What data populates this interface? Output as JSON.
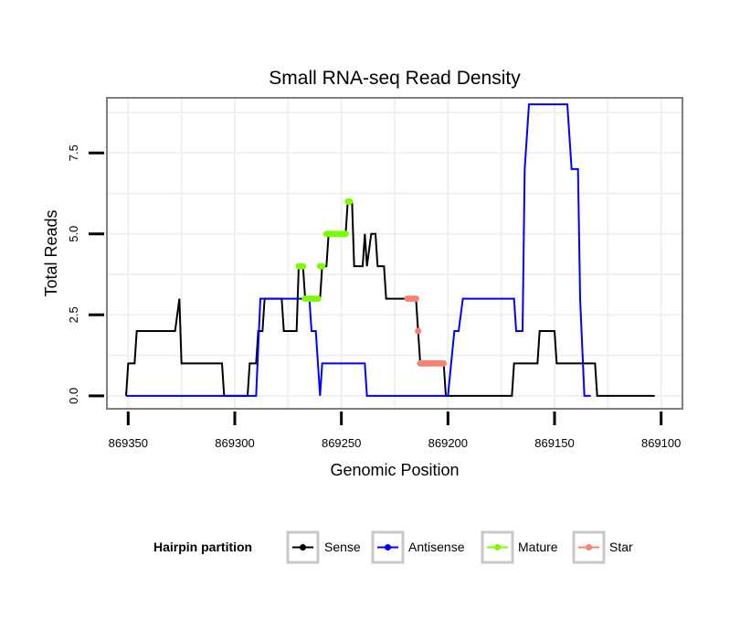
{
  "chart_data": {
    "type": "line",
    "title": "Small RNA-seq Read Density",
    "xlabel": "Genomic Position",
    "ylabel": "Total Reads",
    "xlim": [
      869360,
      869090
    ],
    "ylim": [
      -0.4,
      9.2
    ],
    "x_ticks": [
      869350,
      869300,
      869250,
      869200,
      869150,
      869100
    ],
    "x_tick_labels": [
      "869350",
      "869300",
      "869250",
      "869200",
      "869150",
      "869100"
    ],
    "y_ticks": [
      0,
      2.5,
      5,
      7.5
    ],
    "y_tick_labels": [
      "0.0",
      "2.5",
      "5.0",
      "7.5"
    ],
    "grid": true,
    "legend_position": "bottom",
    "legend_title": "Hairpin partition",
    "series": [
      {
        "name": "Sense",
        "color": "#000000",
        "style": "line",
        "points": [
          [
            869351,
            0
          ],
          [
            869350,
            1
          ],
          [
            869347,
            1
          ],
          [
            869346,
            2
          ],
          [
            869328,
            2
          ],
          [
            869326,
            3
          ],
          [
            869325,
            1
          ],
          [
            869306,
            1
          ],
          [
            869305,
            0
          ],
          [
            869294,
            0
          ],
          [
            869293,
            1
          ],
          [
            869290,
            1
          ],
          [
            869289,
            2
          ],
          [
            869287,
            2
          ],
          [
            869286,
            3
          ],
          [
            869278,
            3
          ],
          [
            869277,
            2
          ],
          [
            869271,
            2
          ],
          [
            869270,
            4
          ],
          [
            869268,
            4
          ],
          [
            869267,
            3
          ],
          [
            869260,
            3
          ],
          [
            869259,
            4
          ],
          [
            869257,
            4
          ],
          [
            869256,
            5
          ],
          [
            869248,
            5
          ],
          [
            869247,
            6
          ],
          [
            869245,
            6
          ],
          [
            869244,
            4
          ],
          [
            869240,
            4
          ],
          [
            869239,
            5
          ],
          [
            869238,
            4
          ],
          [
            869236,
            5
          ],
          [
            869234,
            5
          ],
          [
            869233,
            4
          ],
          [
            869230,
            4
          ],
          [
            869229,
            3
          ],
          [
            869220,
            3
          ],
          [
            869219,
            3
          ],
          [
            869215,
            3
          ],
          [
            869214,
            2
          ],
          [
            869213,
            1
          ],
          [
            869202,
            1
          ],
          [
            869201,
            0
          ],
          [
            869170,
            0
          ],
          [
            869169,
            1
          ],
          [
            869158,
            1
          ],
          [
            869157,
            2
          ],
          [
            869150,
            2
          ],
          [
            869149,
            1
          ],
          [
            869138,
            1
          ],
          [
            869137,
            1
          ],
          [
            869131,
            1
          ],
          [
            869130,
            0
          ],
          [
            869103,
            0
          ]
        ]
      },
      {
        "name": "Antisense",
        "color": "#0000ff",
        "style": "line",
        "points": [
          [
            869351,
            0
          ],
          [
            869294,
            0
          ],
          [
            869293,
            0
          ],
          [
            869290,
            0
          ],
          [
            869288,
            3
          ],
          [
            869271,
            3
          ],
          [
            869270,
            3
          ],
          [
            869265,
            3
          ],
          [
            869264,
            2
          ],
          [
            869262,
            2
          ],
          [
            869260,
            0
          ],
          [
            869259,
            1
          ],
          [
            869239,
            1
          ],
          [
            869238,
            0
          ],
          [
            869200,
            0
          ],
          [
            869197,
            2
          ],
          [
            869195,
            2
          ],
          [
            869193,
            3
          ],
          [
            869169,
            3
          ],
          [
            869168,
            2
          ],
          [
            869165,
            2
          ],
          [
            869164,
            7
          ],
          [
            869162,
            9
          ],
          [
            869144,
            9
          ],
          [
            869142,
            7
          ],
          [
            869139,
            7
          ],
          [
            869138,
            3
          ],
          [
            869136,
            0
          ],
          [
            869133,
            0
          ]
        ]
      },
      {
        "name": "Mature",
        "color": "#7cfc00",
        "style": "points",
        "points": [
          [
            869270,
            4
          ],
          [
            869269,
            4
          ],
          [
            869268,
            4
          ],
          [
            869267,
            3
          ],
          [
            869266,
            3
          ],
          [
            869265,
            3
          ],
          [
            869264,
            3
          ],
          [
            869263,
            3
          ],
          [
            869262,
            3
          ],
          [
            869261,
            3
          ],
          [
            869260,
            4
          ],
          [
            869259,
            4
          ],
          [
            869257,
            5
          ],
          [
            869256,
            5
          ],
          [
            869255,
            5
          ],
          [
            869254,
            5
          ],
          [
            869253,
            5
          ],
          [
            869252,
            5
          ],
          [
            869251,
            5
          ],
          [
            869250,
            5
          ],
          [
            869249,
            5
          ],
          [
            869248,
            5
          ],
          [
            869247,
            6
          ],
          [
            869246,
            6
          ]
        ]
      },
      {
        "name": "Star",
        "color": "#fa8072",
        "style": "points",
        "points": [
          [
            869219,
            3
          ],
          [
            869218,
            3
          ],
          [
            869217,
            3
          ],
          [
            869216,
            3
          ],
          [
            869215,
            3
          ],
          [
            869214,
            2
          ],
          [
            869213,
            1
          ],
          [
            869212,
            1
          ],
          [
            869211,
            1
          ],
          [
            869210,
            1
          ],
          [
            869209,
            1
          ],
          [
            869208,
            1
          ],
          [
            869207,
            1
          ],
          [
            869206,
            1
          ],
          [
            869205,
            1
          ],
          [
            869204,
            1
          ],
          [
            869203,
            1
          ],
          [
            869202,
            1
          ]
        ]
      }
    ]
  }
}
